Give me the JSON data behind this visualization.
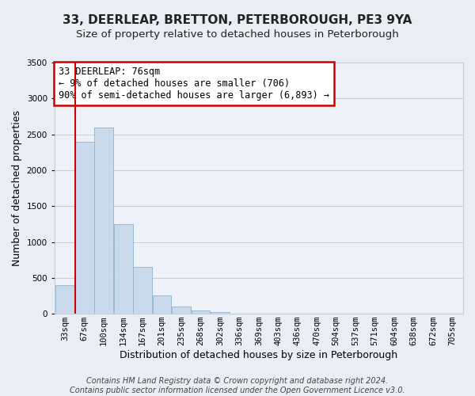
{
  "title": "33, DEERLEAP, BRETTON, PETERBOROUGH, PE3 9YA",
  "subtitle": "Size of property relative to detached houses in Peterborough",
  "xlabel": "Distribution of detached houses by size in Peterborough",
  "ylabel": "Number of detached properties",
  "bar_color": "#c8daec",
  "bar_edge_color": "#92b4cc",
  "bin_labels": [
    "33sqm",
    "67sqm",
    "100sqm",
    "134sqm",
    "167sqm",
    "201sqm",
    "235sqm",
    "268sqm",
    "302sqm",
    "336sqm",
    "369sqm",
    "403sqm",
    "436sqm",
    "470sqm",
    "504sqm",
    "537sqm",
    "571sqm",
    "604sqm",
    "638sqm",
    "672sqm",
    "705sqm"
  ],
  "bar_heights": [
    400,
    2400,
    2600,
    1250,
    650,
    260,
    100,
    50,
    20,
    0,
    0,
    0,
    0,
    0,
    0,
    0,
    0,
    0,
    0,
    0,
    0
  ],
  "ylim": [
    0,
    3500
  ],
  "yticks": [
    0,
    500,
    1000,
    1500,
    2000,
    2500,
    3000,
    3500
  ],
  "property_line_x": 0.5,
  "property_line_color": "#cc0000",
  "annotation_text": "33 DEERLEAP: 76sqm\n← 9% of detached houses are smaller (706)\n90% of semi-detached houses are larger (6,893) →",
  "annotation_box_color": "#ffffff",
  "annotation_box_edge_color": "#cc0000",
  "footer_text": "Contains HM Land Registry data © Crown copyright and database right 2024.\nContains public sector information licensed under the Open Government Licence v3.0.",
  "background_color": "#e8eef4",
  "plot_background_color": "#eef2f8",
  "grid_color": "#c0ccd8",
  "title_fontsize": 11,
  "subtitle_fontsize": 9.5,
  "axis_label_fontsize": 9,
  "tick_fontsize": 7.5,
  "footer_fontsize": 7
}
